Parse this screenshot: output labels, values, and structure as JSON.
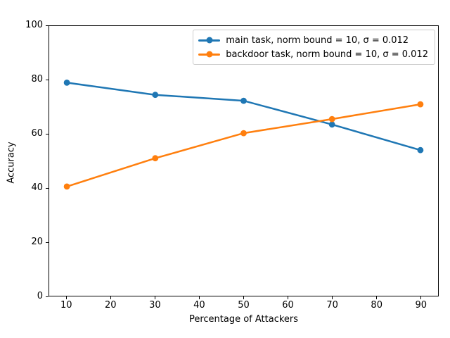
{
  "figure": {
    "background": "#ffffff",
    "frame_color": "#000000"
  },
  "chart_data": {
    "type": "line",
    "title": "",
    "xlabel": "Percentage of Attackers",
    "ylabel": "Accuracy",
    "x": [
      10,
      30,
      50,
      70,
      90
    ],
    "series": [
      {
        "name": "main task, norm bound = 10, σ = 0.012",
        "color": "#1f77b4",
        "marker": "circle",
        "values": [
          79,
          74.5,
          72.3,
          63.5,
          54
        ]
      },
      {
        "name": "backdoor task, norm bound = 10, σ = 0.012",
        "color": "#ff7f0e",
        "marker": "circle",
        "values": [
          40.5,
          51,
          60.3,
          65.5,
          71
        ]
      }
    ],
    "xlim": [
      6,
      94
    ],
    "ylim": [
      0,
      100
    ],
    "xticks": [
      10,
      20,
      30,
      40,
      50,
      60,
      70,
      80,
      90
    ],
    "yticks": [
      0,
      20,
      40,
      60,
      80,
      100
    ],
    "grid": false,
    "legend": {
      "position": "upper right",
      "border_color": "#cccccc"
    }
  }
}
